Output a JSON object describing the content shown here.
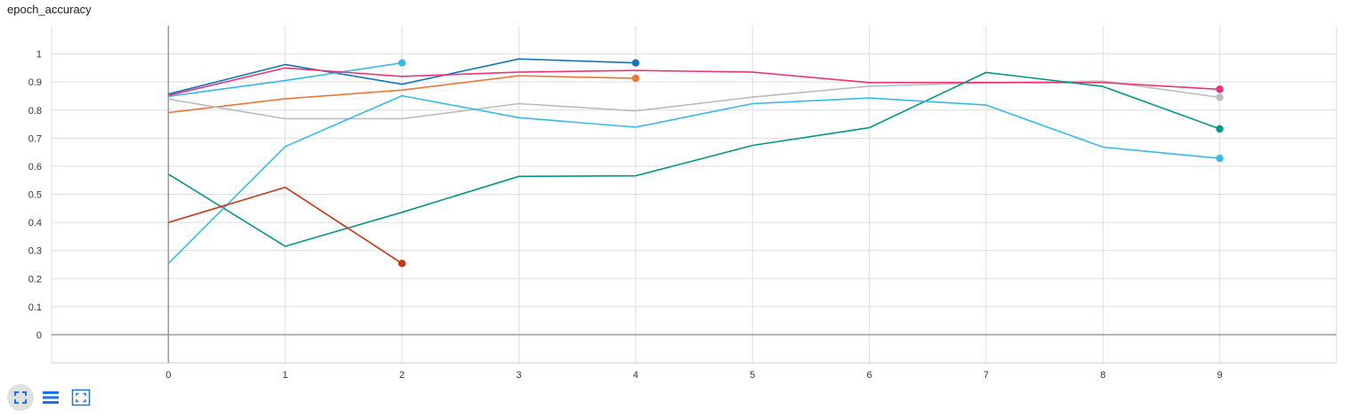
{
  "title": "epoch_accuracy",
  "toolbar": {
    "fit_icon": "fullscreen-icon",
    "legend_icon": "list-icon",
    "zoom_icon": "fit-domain-icon",
    "accent": "#1a73e8"
  },
  "chart_data": {
    "type": "line",
    "title": "epoch_accuracy",
    "xlabel": "",
    "ylabel": "",
    "xlim": [
      -1,
      10
    ],
    "ylim": [
      -0.1,
      1.1
    ],
    "grid": true,
    "x_ticks": [
      0,
      1,
      2,
      3,
      4,
      5,
      6,
      7,
      8,
      9
    ],
    "y_ticks": [
      0,
      0.1,
      0.2,
      0.3,
      0.4,
      0.5,
      0.6,
      0.7,
      0.8,
      0.9,
      1
    ],
    "x_tick_labels": [
      "0",
      "1",
      "2",
      "3",
      "4",
      "5",
      "6",
      "7",
      "8",
      "9"
    ],
    "y_tick_labels": [
      "0",
      "0.1",
      "0.2",
      "0.3",
      "0.4",
      "0.5",
      "0.6",
      "0.7",
      "0.8",
      "0.9",
      "1"
    ],
    "series": [
      {
        "color": "#1177bb",
        "x": [
          0,
          1,
          2,
          3,
          4
        ],
        "values": [
          0.857,
          0.962,
          0.892,
          0.982,
          0.968
        ]
      },
      {
        "color": "#33bbee",
        "x": [
          0,
          1,
          2
        ],
        "values": [
          0.849,
          0.905,
          0.968
        ]
      },
      {
        "color": "#ee7733",
        "x": [
          0,
          1,
          2,
          3,
          4
        ],
        "values": [
          0.791,
          0.84,
          0.871,
          0.922,
          0.913
        ]
      },
      {
        "color": "#bbbbbb",
        "x": [
          0,
          1,
          2,
          3,
          4,
          5,
          6,
          7,
          8,
          9
        ],
        "values": [
          0.839,
          0.769,
          0.769,
          0.823,
          0.797,
          0.846,
          0.885,
          0.897,
          0.903,
          0.845
        ]
      },
      {
        "color": "#ee3377",
        "x": [
          0,
          1,
          2,
          3,
          4,
          5,
          6,
          7,
          8,
          9
        ],
        "values": [
          0.852,
          0.95,
          0.92,
          0.935,
          0.941,
          0.935,
          0.898,
          0.898,
          0.898,
          0.874
        ]
      },
      {
        "color": "#009988",
        "x": [
          0,
          1,
          2,
          3,
          4,
          5,
          6,
          7,
          8,
          9
        ],
        "values": [
          0.572,
          0.315,
          0.436,
          0.564,
          0.566,
          0.674,
          0.737,
          0.934,
          0.884,
          0.733
        ]
      },
      {
        "color": "#33bbee",
        "x": [
          0,
          1,
          2,
          3,
          4,
          5,
          6,
          7,
          8,
          9
        ],
        "values": [
          0.254,
          0.67,
          0.851,
          0.773,
          0.739,
          0.823,
          0.843,
          0.818,
          0.668,
          0.628
        ]
      },
      {
        "color": "#cc3311",
        "x": [
          0,
          1,
          2
        ],
        "values": [
          0.4,
          0.525,
          0.254
        ]
      }
    ]
  }
}
